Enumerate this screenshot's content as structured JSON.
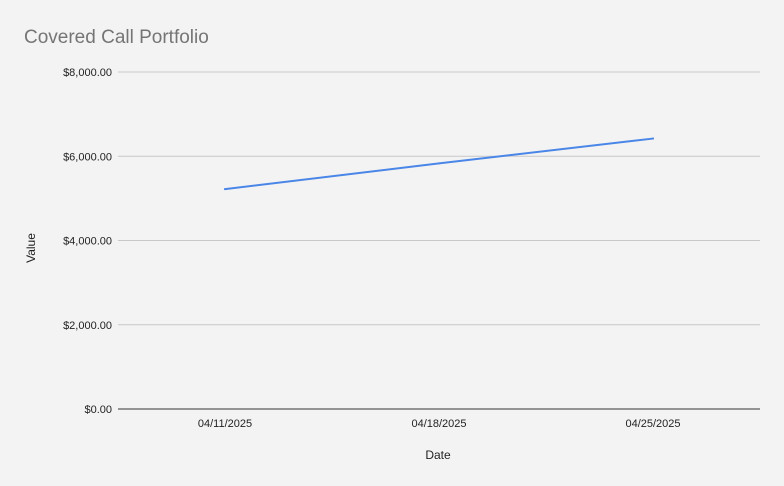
{
  "chart_data": {
    "type": "line",
    "title": "Covered Call Portfolio",
    "xlabel": "Date",
    "ylabel": "Value",
    "categories": [
      "04/11/2025",
      "04/18/2025",
      "04/25/2025"
    ],
    "series": [
      {
        "values": [
          5220,
          5830,
          6420
        ],
        "color": "#4a86e8"
      }
    ],
    "ylim": [
      0,
      8000
    ],
    "yticks": [
      0,
      2000,
      4000,
      6000,
      8000
    ],
    "ytick_labels": [
      "$0.00",
      "$2,000.00",
      "$4,000.00",
      "$6,000.00",
      "$8,000.00"
    ],
    "grid": true,
    "legend": "none"
  }
}
